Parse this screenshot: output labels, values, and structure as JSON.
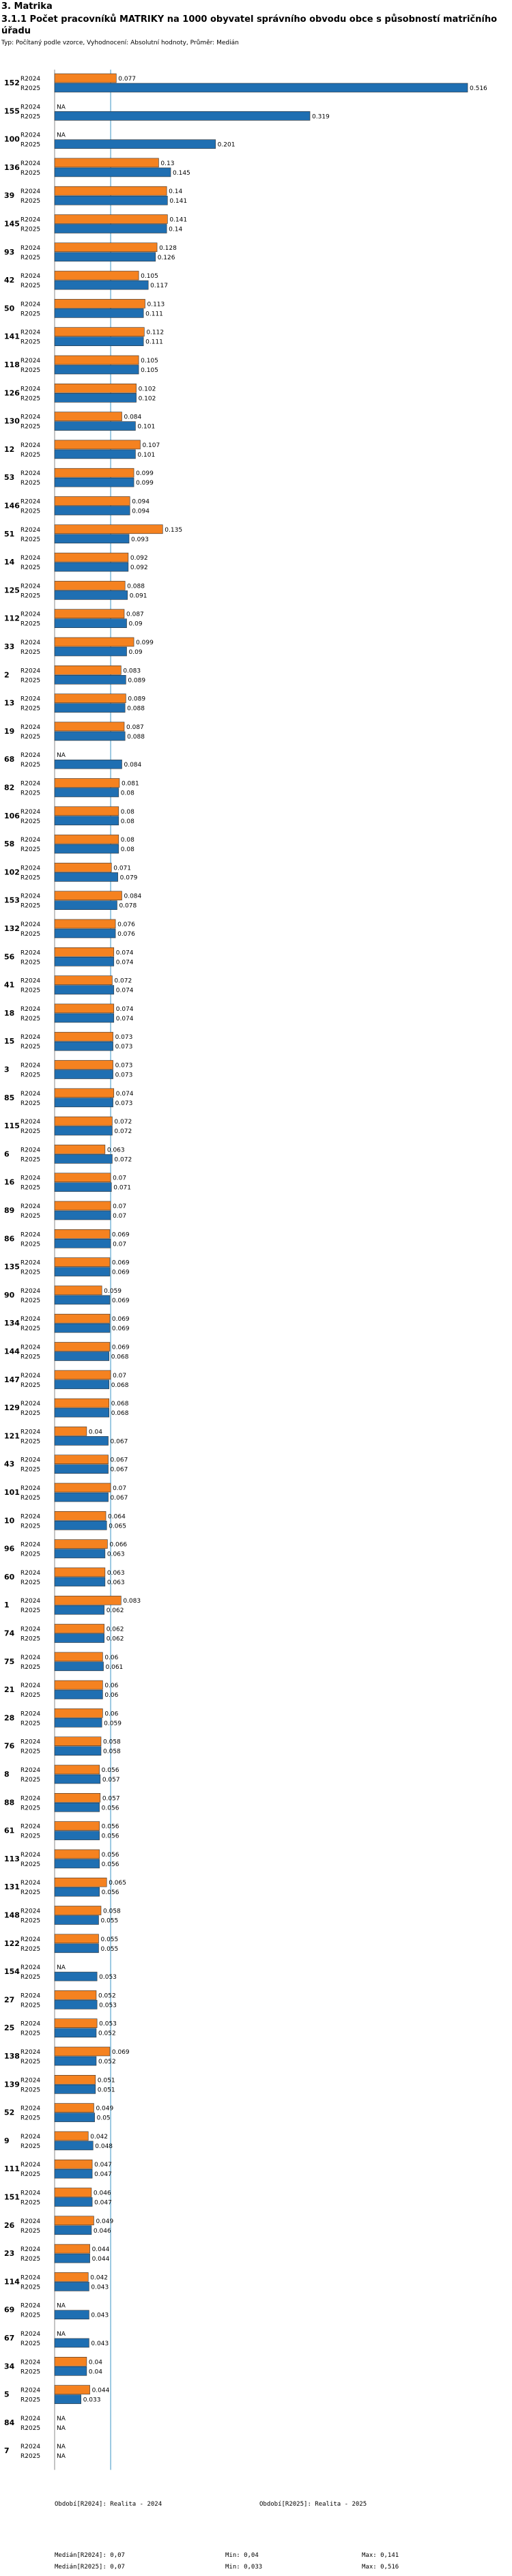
{
  "section_title": "3. Matrika",
  "chart_title": "3.1.1 Počet pracovníků MATRIKY na 1000 obyvatel správního obvodu obce s působností matričního úřadu",
  "subtitle": "Typ: Počítaný podle vzorce, Vyhodnocení: Absolutní hodnoty, Průměr: Medián",
  "colors": {
    "r2024": "#f58220",
    "r2025": "#1f6fb2",
    "median": "#3a94c4"
  },
  "chart_data": {
    "type": "bar",
    "orientation": "horizontal",
    "series_labels": [
      "R2024",
      "R2025"
    ],
    "na_label": "NA",
    "xlim": [
      0,
      0.516
    ],
    "median_line": 0.07,
    "categories": [
      {
        "id": "152",
        "r2024": 0.077,
        "r2025": 0.516
      },
      {
        "id": "155",
        "r2024": null,
        "r2025": 0.319
      },
      {
        "id": "100",
        "r2024": null,
        "r2025": 0.201
      },
      {
        "id": "136",
        "r2024": 0.13,
        "r2025": 0.145
      },
      {
        "id": "39",
        "r2024": 0.14,
        "r2025": 0.141
      },
      {
        "id": "145",
        "r2024": 0.141,
        "r2025": 0.14
      },
      {
        "id": "93",
        "r2024": 0.128,
        "r2025": 0.126
      },
      {
        "id": "42",
        "r2024": 0.105,
        "r2025": 0.117
      },
      {
        "id": "50",
        "r2024": 0.113,
        "r2025": 0.111
      },
      {
        "id": "141",
        "r2024": 0.112,
        "r2025": 0.111
      },
      {
        "id": "118",
        "r2024": 0.105,
        "r2025": 0.105
      },
      {
        "id": "126",
        "r2024": 0.102,
        "r2025": 0.102
      },
      {
        "id": "130",
        "r2024": 0.084,
        "r2025": 0.101
      },
      {
        "id": "12",
        "r2024": 0.107,
        "r2025": 0.101
      },
      {
        "id": "53",
        "r2024": 0.099,
        "r2025": 0.099
      },
      {
        "id": "146",
        "r2024": 0.094,
        "r2025": 0.094
      },
      {
        "id": "51",
        "r2024": 0.135,
        "r2025": 0.093
      },
      {
        "id": "14",
        "r2024": 0.092,
        "r2025": 0.092
      },
      {
        "id": "125",
        "r2024": 0.088,
        "r2025": 0.091
      },
      {
        "id": "112",
        "r2024": 0.087,
        "r2025": 0.09
      },
      {
        "id": "33",
        "r2024": 0.099,
        "r2025": 0.09
      },
      {
        "id": "2",
        "r2024": 0.083,
        "r2025": 0.089
      },
      {
        "id": "13",
        "r2024": 0.089,
        "r2025": 0.088
      },
      {
        "id": "19",
        "r2024": 0.087,
        "r2025": 0.088
      },
      {
        "id": "68",
        "r2024": null,
        "r2025": 0.084
      },
      {
        "id": "82",
        "r2024": 0.081,
        "r2025": 0.08
      },
      {
        "id": "106",
        "r2024": 0.08,
        "r2025": 0.08
      },
      {
        "id": "58",
        "r2024": 0.08,
        "r2025": 0.08
      },
      {
        "id": "102",
        "r2024": 0.071,
        "r2025": 0.079
      },
      {
        "id": "153",
        "r2024": 0.084,
        "r2025": 0.078
      },
      {
        "id": "132",
        "r2024": 0.076,
        "r2025": 0.076
      },
      {
        "id": "56",
        "r2024": 0.074,
        "r2025": 0.074
      },
      {
        "id": "41",
        "r2024": 0.072,
        "r2025": 0.074
      },
      {
        "id": "18",
        "r2024": 0.074,
        "r2025": 0.074
      },
      {
        "id": "15",
        "r2024": 0.073,
        "r2025": 0.073
      },
      {
        "id": "3",
        "r2024": 0.073,
        "r2025": 0.073
      },
      {
        "id": "85",
        "r2024": 0.074,
        "r2025": 0.073
      },
      {
        "id": "115",
        "r2024": 0.072,
        "r2025": 0.072
      },
      {
        "id": "6",
        "r2024": 0.063,
        "r2025": 0.072
      },
      {
        "id": "16",
        "r2024": 0.07,
        "r2025": 0.071
      },
      {
        "id": "89",
        "r2024": 0.07,
        "r2025": 0.07
      },
      {
        "id": "86",
        "r2024": 0.069,
        "r2025": 0.07
      },
      {
        "id": "135",
        "r2024": 0.069,
        "r2025": 0.069
      },
      {
        "id": "90",
        "r2024": 0.059,
        "r2025": 0.069
      },
      {
        "id": "134",
        "r2024": 0.069,
        "r2025": 0.069
      },
      {
        "id": "144",
        "r2024": 0.069,
        "r2025": 0.068
      },
      {
        "id": "147",
        "r2024": 0.07,
        "r2025": 0.068
      },
      {
        "id": "129",
        "r2024": 0.068,
        "r2025": 0.068
      },
      {
        "id": "121",
        "r2024": 0.04,
        "r2025": 0.067
      },
      {
        "id": "43",
        "r2024": 0.067,
        "r2025": 0.067
      },
      {
        "id": "101",
        "r2024": 0.07,
        "r2025": 0.067
      },
      {
        "id": "10",
        "r2024": 0.064,
        "r2025": 0.065
      },
      {
        "id": "96",
        "r2024": 0.066,
        "r2025": 0.063
      },
      {
        "id": "60",
        "r2024": 0.063,
        "r2025": 0.063
      },
      {
        "id": "1",
        "r2024": 0.083,
        "r2025": 0.062
      },
      {
        "id": "74",
        "r2024": 0.062,
        "r2025": 0.062
      },
      {
        "id": "75",
        "r2024": 0.06,
        "r2025": 0.061
      },
      {
        "id": "21",
        "r2024": 0.06,
        "r2025": 0.06
      },
      {
        "id": "28",
        "r2024": 0.06,
        "r2025": 0.059
      },
      {
        "id": "76",
        "r2024": 0.058,
        "r2025": 0.058
      },
      {
        "id": "8",
        "r2024": 0.056,
        "r2025": 0.057
      },
      {
        "id": "88",
        "r2024": 0.057,
        "r2025": 0.056
      },
      {
        "id": "61",
        "r2024": 0.056,
        "r2025": 0.056
      },
      {
        "id": "113",
        "r2024": 0.056,
        "r2025": 0.056
      },
      {
        "id": "131",
        "r2024": 0.065,
        "r2025": 0.056
      },
      {
        "id": "148",
        "r2024": 0.058,
        "r2025": 0.055
      },
      {
        "id": "122",
        "r2024": 0.055,
        "r2025": 0.055
      },
      {
        "id": "154",
        "r2024": null,
        "r2025": 0.053
      },
      {
        "id": "27",
        "r2024": 0.052,
        "r2025": 0.053
      },
      {
        "id": "25",
        "r2024": 0.053,
        "r2025": 0.052
      },
      {
        "id": "138",
        "r2024": 0.069,
        "r2025": 0.052
      },
      {
        "id": "139",
        "r2024": 0.051,
        "r2025": 0.051
      },
      {
        "id": "52",
        "r2024": 0.049,
        "r2025": 0.05
      },
      {
        "id": "9",
        "r2024": 0.042,
        "r2025": 0.048
      },
      {
        "id": "111",
        "r2024": 0.047,
        "r2025": 0.047
      },
      {
        "id": "151",
        "r2024": 0.046,
        "r2025": 0.047
      },
      {
        "id": "26",
        "r2024": 0.049,
        "r2025": 0.046
      },
      {
        "id": "23",
        "r2024": 0.044,
        "r2025": 0.044
      },
      {
        "id": "114",
        "r2024": 0.042,
        "r2025": 0.043
      },
      {
        "id": "69",
        "r2024": null,
        "r2025": 0.043
      },
      {
        "id": "67",
        "r2024": null,
        "r2025": 0.043
      },
      {
        "id": "34",
        "r2024": 0.04,
        "r2025": 0.04
      },
      {
        "id": "5",
        "r2024": 0.044,
        "r2025": 0.033
      },
      {
        "id": "84",
        "r2024": null,
        "r2025": null
      },
      {
        "id": "7",
        "r2024": null,
        "r2025": null
      }
    ]
  },
  "footer": {
    "legend_2024": "Období[R2024]: Realita - 2024",
    "legend_2025": "Období[R2025]: Realita - 2025",
    "median_2024": "Medián[R2024]: 0,07",
    "median_2025": "Medián[R2025]: 0,07",
    "min_2024": "Min: 0,04",
    "min_2025": "Min: 0,033",
    "max_2024": "Max: 0,141",
    "max_2025": "Max: 0,516"
  }
}
